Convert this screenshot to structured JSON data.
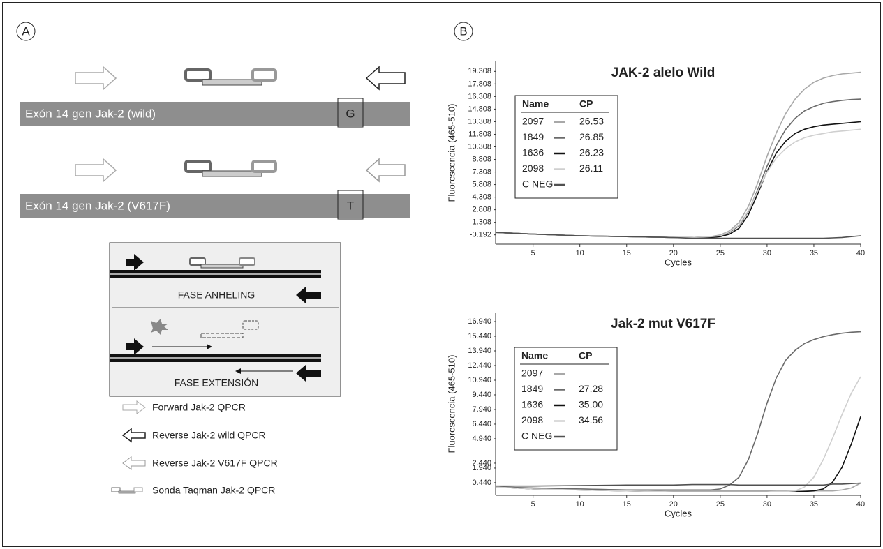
{
  "panel_a": {
    "label": "A",
    "rows": [
      {
        "label": "Exón 14 gen Jak-2 (wild)",
        "base": "G"
      },
      {
        "label": "Exón 14 gen Jak-2 (V617F)",
        "base": "T"
      }
    ],
    "phases": [
      "FASE ANHELING",
      "FASE EXTENSIÓN"
    ],
    "legend": [
      "Forward Jak-2 QPCR",
      "Reverse Jak-2 wild QPCR",
      "Reverse Jak-2 V617F QPCR",
      "Sonda Taqman Jak-2 QPCR"
    ]
  },
  "panel_b": {
    "label": "B"
  },
  "chart_data": [
    {
      "type": "line",
      "title": "JAK-2 alelo Wild",
      "x_label": "Cycles",
      "y_label": "Fluorescencia (465-510)",
      "legend_header": [
        "Name",
        "CP"
      ],
      "x": [
        1,
        5,
        10,
        15,
        20,
        22,
        24,
        25,
        26,
        27,
        28,
        29,
        30,
        31,
        32,
        33,
        34,
        35,
        36,
        37,
        38,
        39,
        40
      ],
      "xlim": [
        1,
        40
      ],
      "xticks": [
        5,
        10,
        15,
        20,
        25,
        30,
        35,
        40
      ],
      "ylim": [
        -1.3,
        20.5
      ],
      "yticks": [
        -0.192,
        1.308,
        2.808,
        4.308,
        5.808,
        7.308,
        8.808,
        10.308,
        11.808,
        13.308,
        14.808,
        16.308,
        17.808,
        19.308
      ],
      "series": [
        {
          "name": "2097",
          "cp": "26.53",
          "color": "#a8a8a8",
          "values": [
            0.1,
            -0.1,
            -0.3,
            -0.4,
            -0.5,
            -0.5,
            -0.4,
            -0.2,
            0.3,
            1.3,
            3.2,
            6.0,
            9.2,
            12.0,
            14.3,
            16.0,
            17.2,
            18.0,
            18.5,
            18.8,
            19.0,
            19.1,
            19.2
          ]
        },
        {
          "name": "1849",
          "cp": "26.85",
          "color": "#6a6a6a",
          "values": [
            0.1,
            -0.1,
            -0.3,
            -0.4,
            -0.5,
            -0.5,
            -0.4,
            -0.3,
            0.1,
            0.9,
            2.6,
            5.2,
            8.0,
            10.5,
            12.4,
            13.7,
            14.6,
            15.1,
            15.5,
            15.7,
            15.85,
            15.95,
            16.0
          ]
        },
        {
          "name": "1636",
          "cp": "26.23",
          "color": "#111111",
          "values": [
            0.1,
            -0.1,
            -0.3,
            -0.4,
            -0.5,
            -0.5,
            -0.5,
            -0.4,
            -0.1,
            0.6,
            2.2,
            4.7,
            7.4,
            9.6,
            11.0,
            11.9,
            12.4,
            12.7,
            12.9,
            13.0,
            13.1,
            13.2,
            13.3
          ]
        },
        {
          "name": "2098",
          "cp": "26.11",
          "color": "#cfcfcf",
          "values": [
            0.1,
            -0.1,
            -0.3,
            -0.4,
            -0.5,
            -0.5,
            -0.4,
            -0.3,
            0.2,
            1.0,
            2.7,
            5.0,
            7.3,
            9.0,
            10.1,
            10.9,
            11.4,
            11.7,
            11.9,
            12.1,
            12.2,
            12.3,
            12.4
          ]
        },
        {
          "name": "C NEG",
          "cp": null,
          "color": "#505050",
          "values": [
            0.1,
            -0.1,
            -0.3,
            -0.4,
            -0.5,
            -0.6,
            -0.6,
            -0.6,
            -0.6,
            -0.6,
            -0.6,
            -0.6,
            -0.6,
            -0.6,
            -0.6,
            -0.6,
            -0.6,
            -0.6,
            -0.6,
            -0.55,
            -0.5,
            -0.4,
            -0.3
          ]
        }
      ]
    },
    {
      "type": "line",
      "title": "Jak-2 mut V617F",
      "x_label": "Cycles",
      "y_label": "Fluorescencia (465-510)",
      "legend_header": [
        "Name",
        "CP"
      ],
      "x": [
        1,
        5,
        10,
        15,
        20,
        22,
        24,
        25,
        26,
        27,
        28,
        29,
        30,
        31,
        32,
        33,
        34,
        35,
        36,
        37,
        38,
        39,
        40
      ],
      "xlim": [
        1,
        40
      ],
      "xticks": [
        5,
        10,
        15,
        20,
        25,
        30,
        35,
        40
      ],
      "ylim": [
        -0.85,
        17.87
      ],
      "yticks": [
        {
          "value": 0.44,
          "label": "0.440"
        },
        {
          "value": 1.94,
          "label": "1.940"
        },
        {
          "value": 2.44,
          "label": "2.440"
        },
        {
          "value": 4.94,
          "label": "4.940"
        },
        {
          "value": 6.44,
          "label": "6.440"
        },
        {
          "value": 7.94,
          "label": "7.940"
        },
        {
          "value": 9.44,
          "label": "9.440"
        },
        {
          "value": 10.94,
          "label": "10.940"
        },
        {
          "value": 12.44,
          "label": "12.440"
        },
        {
          "value": 13.94,
          "label": "13.940"
        },
        {
          "value": 15.44,
          "label": "15.440"
        },
        {
          "value": 16.94,
          "label": "16.940"
        }
      ],
      "series": [
        {
          "name": "2097",
          "cp": null,
          "color": "#a8a8a8",
          "values": [
            0.0,
            -0.1,
            -0.2,
            -0.3,
            -0.4,
            -0.4,
            -0.4,
            -0.4,
            -0.4,
            -0.4,
            -0.4,
            -0.4,
            -0.4,
            -0.4,
            -0.4,
            -0.4,
            -0.4,
            -0.4,
            -0.4,
            -0.4,
            -0.3,
            -0.1,
            0.4
          ]
        },
        {
          "name": "1849",
          "cp": "27.28",
          "color": "#6a6a6a",
          "values": [
            0.0,
            -0.1,
            -0.2,
            -0.3,
            -0.3,
            -0.3,
            -0.3,
            -0.2,
            0.2,
            1.0,
            2.8,
            5.5,
            8.6,
            11.2,
            13.0,
            14.0,
            14.7,
            15.1,
            15.4,
            15.6,
            15.75,
            15.85,
            15.9
          ]
        },
        {
          "name": "1636",
          "cp": "35.00",
          "color": "#111111",
          "values": [
            0.0,
            -0.2,
            -0.3,
            -0.4,
            -0.5,
            -0.5,
            -0.5,
            -0.5,
            -0.5,
            -0.5,
            -0.5,
            -0.5,
            -0.5,
            -0.5,
            -0.5,
            -0.5,
            -0.45,
            -0.4,
            -0.2,
            0.5,
            2.0,
            4.4,
            7.2
          ]
        },
        {
          "name": "2098",
          "cp": "34.56",
          "color": "#cfcfcf",
          "values": [
            0.0,
            -0.2,
            -0.3,
            -0.4,
            -0.5,
            -0.5,
            -0.5,
            -0.5,
            -0.5,
            -0.5,
            -0.5,
            -0.5,
            -0.5,
            -0.45,
            -0.45,
            -0.4,
            0.0,
            1.0,
            2.8,
            5.0,
            7.4,
            9.6,
            11.3
          ]
        },
        {
          "name": "C NEG",
          "cp": null,
          "color": "#505050",
          "values": [
            0.1,
            0.1,
            0.15,
            0.2,
            0.2,
            0.25,
            0.25,
            0.25,
            0.25,
            0.2,
            0.2,
            0.2,
            0.2,
            0.2,
            0.2,
            0.2,
            0.2,
            0.2,
            0.2,
            0.3,
            0.3,
            0.35,
            0.4
          ]
        }
      ]
    }
  ]
}
